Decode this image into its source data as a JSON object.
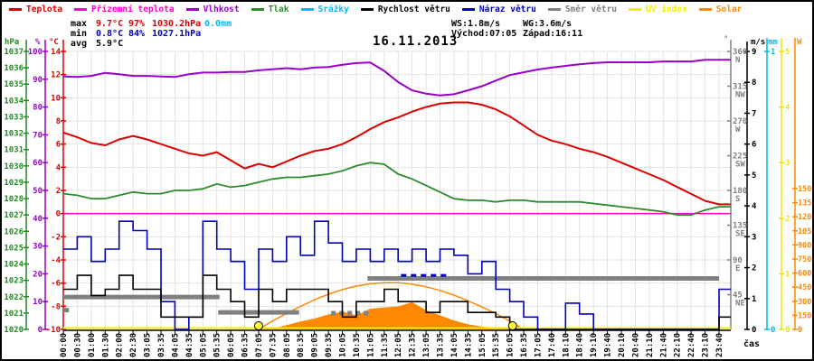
{
  "title": "16.11.2013",
  "xlabel": "čas",
  "legend": {
    "items": [
      {
        "label": "Teplota",
        "color": "#dd0000"
      },
      {
        "label": "Přízemní teplota",
        "color": "#ff00cc"
      },
      {
        "label": "Vlhkost",
        "color": "#9900cc"
      },
      {
        "label": "Tlak",
        "color": "#2d8b2d"
      },
      {
        "label": "Srážky",
        "color": "#00bbee"
      },
      {
        "label": "Rychlost větru",
        "color": "#000000"
      },
      {
        "label": "Náraz větru",
        "color": "#0000bb"
      },
      {
        "label": "Směr větru",
        "color": "#808080"
      },
      {
        "label": "UV index",
        "color": "#f0f000"
      },
      {
        "label": "Solar",
        "color": "#ff8800"
      }
    ]
  },
  "stats": {
    "max": {
      "label": "max",
      "temp": "9.7°C",
      "humidity": "97%",
      "pressure": "1030.2hPa",
      "rain": "0.0mm"
    },
    "min": {
      "label": "min",
      "temp": "0.8°C",
      "humidity": "84%",
      "pressure": "1027.1hPa"
    },
    "avg": {
      "label": "avg",
      "temp": "5.9°C"
    },
    "wind": {
      "ws": "WS:1.8m/s",
      "wg": "WG:3.6m/s"
    },
    "sun": {
      "sunrise": "Východ:07:05",
      "sunset": "Západ:16:11"
    }
  },
  "chart_data": {
    "type": "line",
    "title": "16.11.2013",
    "xlabel": "čas",
    "grid": true,
    "x_labels": [
      "00:00",
      "00:30",
      "01:00",
      "01:30",
      "02:00",
      "02:30",
      "03:05",
      "03:35",
      "04:05",
      "04:35",
      "05:05",
      "05:35",
      "06:05",
      "06:35",
      "07:05",
      "07:35",
      "08:05",
      "08:35",
      "09:05",
      "09:35",
      "10:05",
      "10:35",
      "11:05",
      "11:35",
      "12:05",
      "12:35",
      "13:05",
      "13:35",
      "14:05",
      "14:35",
      "15:05",
      "15:35",
      "16:05",
      "16:35",
      "17:05",
      "17:40",
      "18:10",
      "18:40",
      "19:10",
      "19:40",
      "20:10",
      "20:40",
      "21:10",
      "21:40",
      "22:10",
      "22:40",
      "23:10",
      "23:40"
    ],
    "axes": {
      "pressure_hpa": {
        "title": "hPa",
        "min": 1020,
        "max": 1037,
        "step": 1,
        "color": "#228b22"
      },
      "humidity_pct": {
        "title": "%",
        "min": 0,
        "max": 100,
        "step": 10,
        "color": "#9900cc"
      },
      "temp_c": {
        "title": "°C",
        "min": -10,
        "max": 14,
        "step": 2,
        "color": "#dd0000"
      },
      "direction_deg": {
        "title": "°",
        "min": 0,
        "max": 360,
        "step": 45,
        "color": "#808080",
        "compass": {
          "45": "NE",
          "90": "E",
          "135": "SE",
          "180": "S",
          "225": "SW",
          "270": "W",
          "315": "NW",
          "360": "N"
        }
      },
      "wind_ms": {
        "title": "m/s",
        "min": 0,
        "max": 9,
        "step": 1,
        "color": "#000000"
      },
      "rain_mm": {
        "title": "mm",
        "min": 0,
        "max": 1,
        "step": 1,
        "color": "#00bbee"
      },
      "uv_index": {
        "title": "",
        "min": 0,
        "max": 5,
        "step": 1,
        "color": "#e8e800"
      },
      "solar_w": {
        "title": "W",
        "min": 0,
        "max": 1500,
        "step": 150,
        "color": "#ff8800"
      }
    },
    "series": {
      "teplota_c": [
        7.0,
        6.6,
        6.1,
        5.9,
        6.4,
        6.7,
        6.4,
        6.0,
        5.6,
        5.2,
        5.0,
        5.3,
        4.6,
        3.9,
        4.3,
        4.0,
        4.5,
        5.0,
        5.4,
        5.6,
        6.0,
        6.6,
        7.3,
        7.9,
        8.3,
        8.8,
        9.2,
        9.5,
        9.6,
        9.6,
        9.4,
        9.0,
        8.4,
        7.6,
        6.8,
        6.3,
        6.0,
        5.6,
        5.3,
        4.9,
        4.4,
        3.9,
        3.4,
        2.9,
        2.3,
        1.7,
        1.1,
        0.8
      ],
      "prizemni_teplota_c": 0.0,
      "vlhkost_pct": [
        91,
        90.8,
        91.2,
        92.3,
        91.8,
        91.2,
        91.2,
        91.0,
        90.8,
        91.8,
        92.4,
        92.4,
        92.6,
        92.6,
        93.2,
        93.6,
        94.0,
        93.6,
        94.2,
        94.4,
        95.2,
        95.8,
        96.0,
        93.0,
        89.0,
        86.0,
        84.8,
        84.2,
        84.6,
        86.0,
        87.5,
        89.5,
        91.5,
        92.5,
        93.5,
        94.2,
        94.8,
        95.4,
        95.8,
        96.1,
        96.1,
        96.1,
        96.1,
        96.4,
        96.4,
        96.4,
        97.0,
        97.0
      ],
      "tlak_hpa": [
        1028.3,
        1028.2,
        1028.0,
        1028.0,
        1028.2,
        1028.4,
        1028.3,
        1028.3,
        1028.5,
        1028.5,
        1028.6,
        1028.9,
        1028.7,
        1028.8,
        1029.0,
        1029.2,
        1029.3,
        1029.3,
        1029.4,
        1029.5,
        1029.7,
        1030.0,
        1030.2,
        1030.1,
        1029.5,
        1029.2,
        1028.8,
        1028.4,
        1028.0,
        1027.9,
        1027.9,
        1027.8,
        1027.9,
        1027.9,
        1027.8,
        1027.8,
        1027.8,
        1027.8,
        1027.7,
        1027.6,
        1027.5,
        1027.4,
        1027.3,
        1027.2,
        1027.0,
        1027.0,
        1027.3,
        1027.5
      ],
      "srazky_mm": 0.0,
      "rychlost_vetru_ms": [
        1.3,
        1.75,
        1.1,
        1.3,
        1.75,
        1.3,
        1.3,
        0.4,
        0.4,
        0.4,
        1.75,
        1.3,
        0.9,
        0.4,
        1.3,
        0.9,
        1.3,
        1.3,
        1.3,
        0.9,
        0.4,
        0.9,
        0.9,
        1.3,
        0.9,
        0.9,
        0.55,
        0.9,
        0.9,
        0.55,
        0.55,
        0.4,
        0,
        0,
        0,
        0,
        0,
        0,
        0,
        0,
        0,
        0,
        0,
        0,
        0,
        0,
        0,
        0.4
      ],
      "naraz_vetru_ms": [
        2.6,
        3.0,
        2.2,
        2.6,
        3.5,
        3.2,
        2.6,
        0.9,
        0,
        0.4,
        3.5,
        2.6,
        2.2,
        1.3,
        2.6,
        2.2,
        3.0,
        2.4,
        3.5,
        2.8,
        2.2,
        2.6,
        2.2,
        2.6,
        2.2,
        2.6,
        2.2,
        2.6,
        2.4,
        1.8,
        2.2,
        1.3,
        0.9,
        0.4,
        0,
        0,
        0.85,
        0.5,
        0,
        0,
        0,
        0,
        0,
        0,
        0,
        0,
        0,
        1.3
      ],
      "naraz_vetru_dash": {
        "from_i": 24.2,
        "to_i": 27.5,
        "ms": 1.75
      },
      "uv_index": 0.0,
      "solar_w": [
        0,
        0,
        0,
        0,
        0,
        0,
        0,
        0,
        0,
        0,
        0,
        0,
        0,
        0,
        0,
        10,
        45,
        85,
        115,
        160,
        190,
        150,
        220,
        235,
        245,
        290,
        205,
        150,
        95,
        55,
        30,
        15,
        5,
        0,
        0,
        0,
        0,
        0,
        0,
        0,
        0,
        0,
        0,
        0,
        0,
        0,
        0,
        0
      ],
      "solar_clearsky_w": [
        0,
        0,
        0,
        0,
        0,
        0,
        0,
        0,
        0,
        0,
        0,
        0,
        0,
        0,
        0,
        90,
        170,
        245,
        315,
        375,
        425,
        462,
        487,
        498,
        497,
        482,
        455,
        415,
        365,
        305,
        240,
        168,
        90,
        0,
        0,
        0,
        0,
        0,
        0,
        0,
        0,
        0,
        0,
        0,
        0,
        0,
        0,
        0
      ],
      "smer_vetru_segments": [
        {
          "from_i": 0,
          "to_i": 0.4,
          "deg": 25,
          "dashed": false
        },
        {
          "from_i": 0,
          "to_i": 11.2,
          "deg": 42,
          "dashed": false
        },
        {
          "from_i": 11.1,
          "to_i": 16.9,
          "deg": 22,
          "dashed": false
        },
        {
          "from_i": 19.2,
          "to_i": 22.0,
          "deg": 21,
          "dashed": true
        },
        {
          "from_i": 21.8,
          "to_i": 47,
          "deg": 66,
          "dashed": false
        }
      ]
    },
    "sun_markers": {
      "sunrise_i": 14.0,
      "sunset_i": 32.2,
      "color": "#ffff33"
    }
  }
}
